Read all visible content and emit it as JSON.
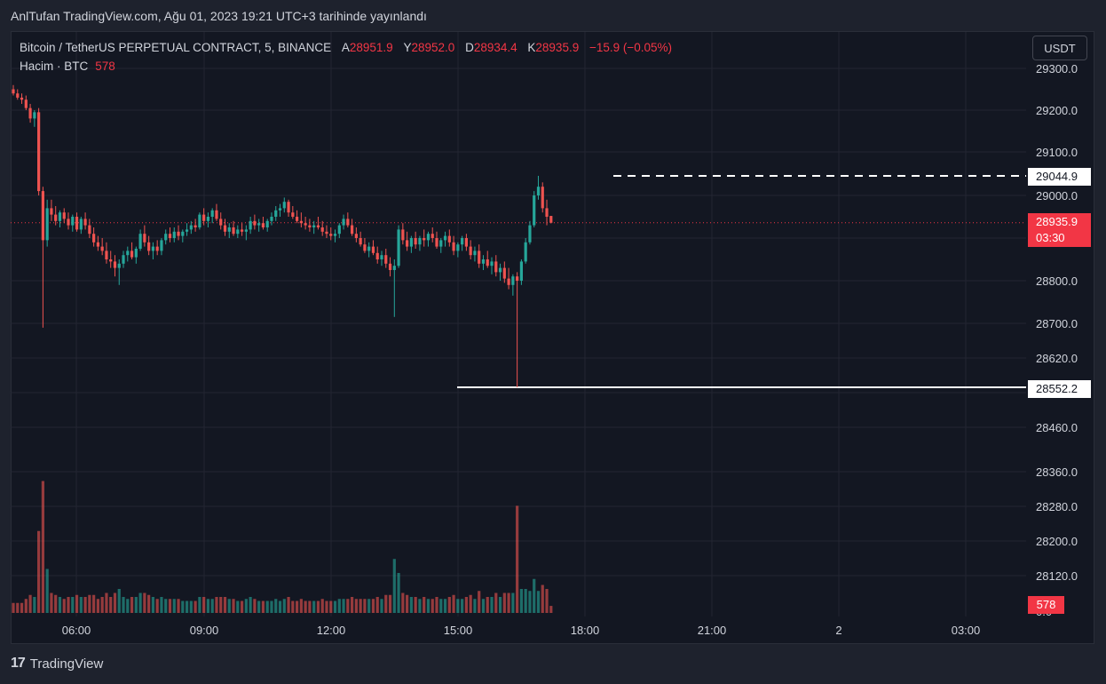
{
  "header": {
    "published_line": "AnlTufan TradingView.com, Ağu 01, 2023 19:21 UTC+3 tarihinde yayınlandı"
  },
  "legend": {
    "symbol": "Bitcoin / TetherUS PERPETUAL CONTRACT, 5, BINANCE",
    "open_label": "A",
    "open_value": "28951.9",
    "high_label": "Y",
    "high_value": "28952.0",
    "low_label": "D",
    "low_value": "28934.4",
    "close_label": "K",
    "close_value": "28935.9",
    "change": "−15.9 (−0.05%)",
    "volume_label": "Hacim · BTC",
    "volume_value": "578"
  },
  "currency_button": "USDT",
  "price_axis": {
    "ticks": [
      "29300.0",
      "29200.0",
      "29100.0",
      "29000.0",
      "28800.0",
      "28700.0",
      "28620.0",
      "28460.0",
      "28360.0",
      "28280.0",
      "28200.0",
      "28120.0",
      "0.0"
    ],
    "line_tag_top": "29044.9",
    "line_tag_bottom": "28552.2",
    "last_price": "28935.9",
    "countdown": "03:30",
    "volume_tag": "578"
  },
  "time_axis": {
    "ticks": [
      "06:00",
      "09:00",
      "12:00",
      "15:00",
      "18:00",
      "21:00",
      "2",
      "03:00"
    ]
  },
  "colors": {
    "up": "#26a69a",
    "down": "#ef5350",
    "background": "#131722",
    "grid": "#232632"
  },
  "brand": "TradingView",
  "chart_data": {
    "type": "candlestick",
    "title": "Bitcoin / TetherUS PERPETUAL CONTRACT, 5, BINANCE",
    "timeframe": "5",
    "x_ticks": [
      "06:00",
      "09:00",
      "12:00",
      "15:00",
      "18:00",
      "21:00",
      "2",
      "03:00"
    ],
    "y_range": [
      28460,
      29300
    ],
    "horizontal_lines": [
      {
        "value": 29044.9,
        "style": "dashed",
        "color": "#ffffff"
      },
      {
        "value": 28552.2,
        "style": "solid",
        "color": "#ffffff"
      }
    ],
    "last_price": 28935.9,
    "candles_ohlc": [
      [
        29250,
        29260,
        29235,
        29240
      ],
      [
        29240,
        29250,
        29225,
        29230
      ],
      [
        29230,
        29240,
        29215,
        29225
      ],
      [
        29225,
        29235,
        29200,
        29205
      ],
      [
        29205,
        29215,
        29170,
        29180
      ],
      [
        29180,
        29200,
        29160,
        29195
      ],
      [
        29195,
        29205,
        29000,
        29010
      ],
      [
        29010,
        29020,
        28690,
        28895
      ],
      [
        28895,
        28990,
        28880,
        28970
      ],
      [
        28970,
        28990,
        28940,
        28955
      ],
      [
        28955,
        28975,
        28930,
        28940
      ],
      [
        28940,
        28965,
        28925,
        28960
      ],
      [
        28960,
        28970,
        28935,
        28945
      ],
      [
        28945,
        28960,
        28920,
        28930
      ],
      [
        28930,
        28955,
        28915,
        28950
      ],
      [
        28950,
        28960,
        28915,
        28920
      ],
      [
        28920,
        28950,
        28910,
        28945
      ],
      [
        28945,
        28960,
        28920,
        28930
      ],
      [
        28930,
        28945,
        28900,
        28910
      ],
      [
        28910,
        28925,
        28880,
        28890
      ],
      [
        28890,
        28905,
        28870,
        28880
      ],
      [
        28880,
        28900,
        28860,
        28870
      ],
      [
        28870,
        28890,
        28840,
        28850
      ],
      [
        28850,
        28870,
        28830,
        28845
      ],
      [
        28845,
        28860,
        28810,
        28830
      ],
      [
        28830,
        28850,
        28790,
        28840
      ],
      [
        28840,
        28870,
        28830,
        28860
      ],
      [
        28860,
        28880,
        28845,
        28870
      ],
      [
        28870,
        28890,
        28850,
        28855
      ],
      [
        28855,
        28880,
        28840,
        28875
      ],
      [
        28875,
        28920,
        28870,
        28910
      ],
      [
        28910,
        28930,
        28880,
        28890
      ],
      [
        28890,
        28905,
        28860,
        28870
      ],
      [
        28870,
        28890,
        28850,
        28880
      ],
      [
        28880,
        28895,
        28860,
        28870
      ],
      [
        28870,
        28900,
        28860,
        28895
      ],
      [
        28895,
        28920,
        28885,
        28910
      ],
      [
        28910,
        28925,
        28890,
        28900
      ],
      [
        28900,
        28925,
        28890,
        28915
      ],
      [
        28915,
        28930,
        28895,
        28905
      ],
      [
        28905,
        28920,
        28890,
        28915
      ],
      [
        28915,
        28935,
        28905,
        28920
      ],
      [
        28920,
        28940,
        28910,
        28930
      ],
      [
        28930,
        28945,
        28915,
        28925
      ],
      [
        28925,
        28960,
        28920,
        28955
      ],
      [
        28955,
        28970,
        28930,
        28940
      ],
      [
        28940,
        28960,
        28925,
        28950
      ],
      [
        28950,
        28970,
        28935,
        28965
      ],
      [
        28965,
        28980,
        28940,
        28945
      ],
      [
        28945,
        28960,
        28920,
        28930
      ],
      [
        28930,
        28945,
        28905,
        28915
      ],
      [
        28915,
        28935,
        28900,
        28925
      ],
      [
        28925,
        28940,
        28905,
        28910
      ],
      [
        28910,
        28930,
        28900,
        28920
      ],
      [
        28920,
        28935,
        28905,
        28915
      ],
      [
        28915,
        28930,
        28895,
        28920
      ],
      [
        28920,
        28950,
        28910,
        28940
      ],
      [
        28940,
        28955,
        28920,
        28930
      ],
      [
        28930,
        28945,
        28915,
        28935
      ],
      [
        28935,
        28950,
        28920,
        28925
      ],
      [
        28925,
        28945,
        28915,
        28940
      ],
      [
        28940,
        28960,
        28930,
        28950
      ],
      [
        28950,
        28975,
        28940,
        28965
      ],
      [
        28965,
        28980,
        28950,
        28970
      ],
      [
        28970,
        28995,
        28960,
        28985
      ],
      [
        28985,
        28990,
        28950,
        28960
      ],
      [
        28960,
        28975,
        28945,
        28950
      ],
      [
        28950,
        28965,
        28935,
        28940
      ],
      [
        28940,
        28960,
        28925,
        28935
      ],
      [
        28935,
        28950,
        28920,
        28930
      ],
      [
        28930,
        28945,
        28915,
        28925
      ],
      [
        28925,
        28940,
        28910,
        28930
      ],
      [
        28930,
        28950,
        28920,
        28925
      ],
      [
        28925,
        28940,
        28905,
        28915
      ],
      [
        28915,
        28930,
        28900,
        28910
      ],
      [
        28910,
        28925,
        28895,
        28905
      ],
      [
        28905,
        28920,
        28890,
        28910
      ],
      [
        28910,
        28935,
        28900,
        28930
      ],
      [
        28930,
        28955,
        28920,
        28945
      ],
      [
        28945,
        28960,
        28925,
        28930
      ],
      [
        28930,
        28945,
        28905,
        28910
      ],
      [
        28910,
        28925,
        28890,
        28900
      ],
      [
        28900,
        28915,
        28880,
        28885
      ],
      [
        28885,
        28900,
        28865,
        28870
      ],
      [
        28870,
        28890,
        28855,
        28880
      ],
      [
        28880,
        28895,
        28860,
        28865
      ],
      [
        28865,
        28880,
        28840,
        28850
      ],
      [
        28850,
        28870,
        28835,
        28860
      ],
      [
        28860,
        28875,
        28830,
        28840
      ],
      [
        28840,
        28855,
        28810,
        28825
      ],
      [
        28825,
        28850,
        28715,
        28835
      ],
      [
        28835,
        28930,
        28830,
        28920
      ],
      [
        28920,
        28935,
        28885,
        28895
      ],
      [
        28895,
        28915,
        28870,
        28880
      ],
      [
        28880,
        28905,
        28865,
        28900
      ],
      [
        28900,
        28915,
        28875,
        28885
      ],
      [
        28885,
        28905,
        28870,
        28900
      ],
      [
        28900,
        28920,
        28880,
        28895
      ],
      [
        28895,
        28915,
        28880,
        28910
      ],
      [
        28910,
        28925,
        28890,
        28900
      ],
      [
        28900,
        28915,
        28875,
        28880
      ],
      [
        28880,
        28900,
        28865,
        28895
      ],
      [
        28895,
        28915,
        28880,
        28905
      ],
      [
        28905,
        28920,
        28880,
        28890
      ],
      [
        28890,
        28905,
        28860,
        28870
      ],
      [
        28870,
        28890,
        28855,
        28885
      ],
      [
        28885,
        28905,
        28870,
        28900
      ],
      [
        28900,
        28910,
        28870,
        28880
      ],
      [
        28880,
        28895,
        28850,
        28860
      ],
      [
        28860,
        28880,
        28845,
        28870
      ],
      [
        28870,
        28885,
        28830,
        28840
      ],
      [
        28840,
        28860,
        28825,
        28850
      ],
      [
        28850,
        28870,
        28830,
        28835
      ],
      [
        28835,
        28855,
        28815,
        28845
      ],
      [
        28845,
        28860,
        28810,
        28820
      ],
      [
        28820,
        28840,
        28800,
        28830
      ],
      [
        28830,
        28845,
        28795,
        28805
      ],
      [
        28805,
        28830,
        28780,
        28790
      ],
      [
        28790,
        28815,
        28765,
        28810
      ],
      [
        28810,
        28820,
        28552,
        28800
      ],
      [
        28800,
        28850,
        28790,
        28845
      ],
      [
        28845,
        28900,
        28840,
        28890
      ],
      [
        28890,
        28940,
        28885,
        28930
      ],
      [
        28930,
        29010,
        28925,
        29000
      ],
      [
        29000,
        29045,
        28990,
        29020
      ],
      [
        29020,
        29030,
        28960,
        28970
      ],
      [
        28970,
        28990,
        28930,
        28950
      ],
      [
        28951.9,
        28952,
        28934.4,
        28935.9
      ]
    ],
    "volume_range": [
      0,
      2800
    ],
    "volume_spike_max_label": "578"
  }
}
